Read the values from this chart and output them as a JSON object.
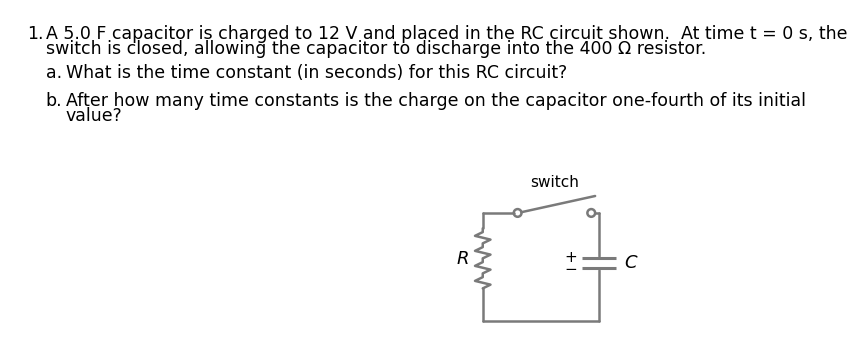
{
  "background_color": "#ffffff",
  "text_color": "#000000",
  "line1_number": "1.",
  "line1_text": "A 5.0 F capacitor is charged to 12 V and placed in the RC circuit shown.  At time t = 0 s, the",
  "line2_text": "switch is closed, allowing the capacitor to discharge into the 400 Ω resistor.",
  "part_a_label": "a.",
  "part_a_text": "What is the time constant (in seconds) for this RC circuit?",
  "part_b_label": "b.",
  "part_b_text": "After how many time constants is the charge on the capacitor one-fourth of its initial",
  "part_b_text2": "value?",
  "circuit_label_R": "R",
  "circuit_label_C": "C",
  "circuit_label_switch": "switch",
  "circuit_plus": "+",
  "circuit_minus": "−",
  "font_size_main": 12.5,
  "circuit_color": "#7a7a7a",
  "fig_width": 8.83,
  "fig_height": 4.42
}
